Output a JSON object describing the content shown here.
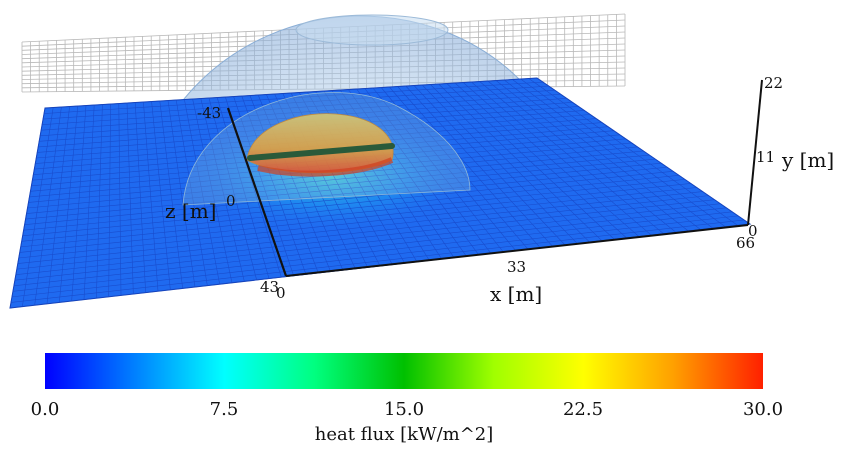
{
  "chart_data": {
    "type": "heatmap",
    "title": "",
    "axes": {
      "x": {
        "label": "x [m]",
        "range": [
          0,
          66
        ],
        "ticks": [
          {
            "value": 0,
            "label": "0"
          },
          {
            "value": 33,
            "label": "33"
          },
          {
            "value": 66,
            "label": "66"
          }
        ]
      },
      "y": {
        "label": "y [m]",
        "range": [
          0,
          22
        ],
        "ticks": [
          {
            "value": 0,
            "label": "0"
          },
          {
            "value": 11,
            "label": "11"
          },
          {
            "value": 22,
            "label": "22"
          }
        ]
      },
      "z": {
        "label": "z [m]",
        "range": [
          -43,
          43
        ],
        "ticks": [
          {
            "value": -43,
            "label": "-43"
          },
          {
            "value": 0,
            "label": "0"
          },
          {
            "value": 43,
            "label": "43"
          }
        ]
      }
    },
    "colorbar": {
      "label": "heat flux [kW/m^2]",
      "range": [
        0,
        30
      ],
      "ticks": [
        "0.0",
        "7.5",
        "15.0",
        "22.5",
        "30.0"
      ],
      "colors": [
        "#0000ff",
        "#00ffff",
        "#00ff00",
        "#ffff00",
        "#ff0000"
      ]
    },
    "grid": true
  }
}
